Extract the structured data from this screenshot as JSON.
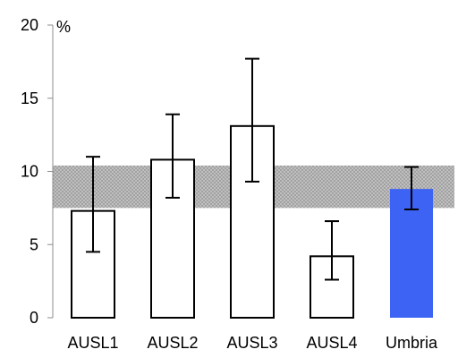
{
  "chart_data": {
    "type": "bar",
    "title": "",
    "xlabel": "",
    "ylabel": "",
    "y_unit": "%",
    "ylim": [
      0,
      20
    ],
    "yticks": [
      0,
      5,
      10,
      15,
      20
    ],
    "grid": false,
    "categories": [
      "AUSL1",
      "AUSL2",
      "AUSL3",
      "AUSL4",
      "Umbria"
    ],
    "values": [
      7.3,
      10.8,
      13.1,
      4.2,
      8.8
    ],
    "error_low": [
      4.5,
      8.2,
      9.3,
      2.6,
      7.4
    ],
    "error_high": [
      11.0,
      13.9,
      17.7,
      6.6,
      10.3
    ],
    "reference_band": [
      7.5,
      10.4
    ],
    "colors": {
      "bar_fill": "#ffffff",
      "bar_stroke": "#000000",
      "highlight_fill": "#3d63f5",
      "band_fill": "#c8c8c8",
      "band_hatch": "#9a9a9a"
    },
    "highlight_category": "Umbria"
  }
}
